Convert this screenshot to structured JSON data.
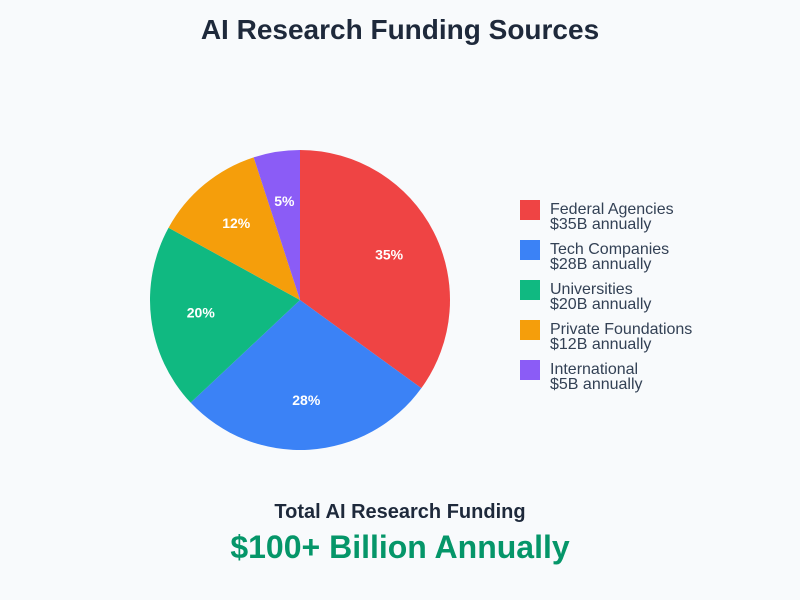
{
  "title": "AI Research Funding Sources",
  "chart_data": {
    "type": "pie",
    "title": "AI Research Funding Sources",
    "categories": [
      "Federal Agencies",
      "Tech Companies",
      "Universities",
      "Private Foundations",
      "International"
    ],
    "values": [
      35,
      28,
      20,
      12,
      5
    ],
    "slice_labels": [
      "35%",
      "28%",
      "20%",
      "12%",
      "5%"
    ],
    "colors": [
      "#ef4444",
      "#3b82f6",
      "#10b981",
      "#f59e0b",
      "#8b5cf6"
    ],
    "legend_placement": "right"
  },
  "legend": [
    {
      "name": "Federal Agencies",
      "amount": "$35B annually",
      "color": "#ef4444"
    },
    {
      "name": "Tech Companies",
      "amount": "$28B annually",
      "color": "#3b82f6"
    },
    {
      "name": "Universities",
      "amount": "$20B annually",
      "color": "#10b981"
    },
    {
      "name": "Private Foundations",
      "amount": "$12B annually",
      "color": "#f59e0b"
    },
    {
      "name": "International",
      "amount": "$5B annually",
      "color": "#8b5cf6"
    }
  ],
  "total": {
    "label": "Total AI Research Funding",
    "value": "$100+ Billion Annually",
    "value_color": "#059669"
  }
}
